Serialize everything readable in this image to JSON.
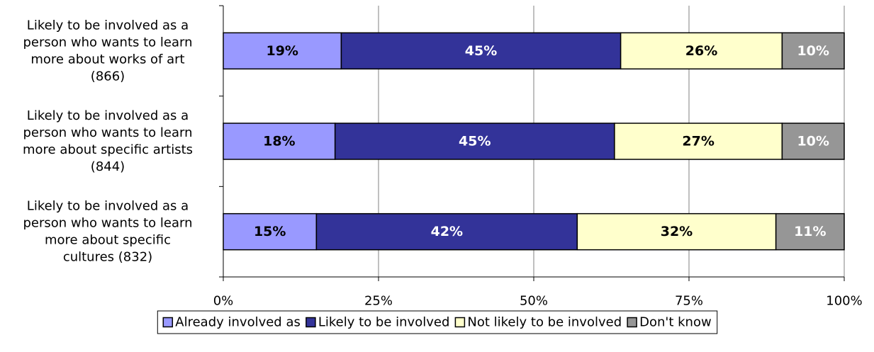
{
  "chart_data": {
    "type": "bar",
    "orientation": "horizontal",
    "stacked": true,
    "percent_stacked": true,
    "categories": [
      "Likely to be involved as a person who wants to learn more about works of art (866)",
      "Likely to be involved as a person who wants to learn more about specific artists (844)",
      "Likely to be involved as a person who wants to learn more about specific cultures (832)"
    ],
    "category_label_lines": [
      [
        "Likely to be involved as a",
        "person who wants to learn",
        "more about works of art",
        "(866)"
      ],
      [
        "Likely to be involved as a",
        "person who wants to learn",
        "more about specific artists",
        "(844)"
      ],
      [
        "Likely to be involved as a",
        "person who wants to learn",
        "more about specific",
        "cultures (832)"
      ]
    ],
    "series": [
      {
        "name": "Already involved as",
        "color": "#9999ff",
        "label_color": "#000000",
        "values": [
          19,
          18,
          15
        ]
      },
      {
        "name": "Likely to be involved",
        "color": "#333399",
        "label_color": "#ffffff",
        "values": [
          45,
          45,
          42
        ]
      },
      {
        "name": "Not likely to be involved",
        "color": "#ffffcc",
        "label_color": "#000000",
        "values": [
          26,
          27,
          32
        ]
      },
      {
        "name": "Don't know",
        "color": "#969696",
        "label_color": "#ffffff",
        "values": [
          10,
          10,
          11
        ]
      }
    ],
    "data_label_format": "{value}%",
    "xlim": [
      0,
      100
    ],
    "x_ticks": [
      0,
      25,
      50,
      75,
      100
    ],
    "x_tick_labels": [
      "0%",
      "25%",
      "50%",
      "75%",
      "100%"
    ],
    "grid": "vertical",
    "legend": "bottom"
  }
}
